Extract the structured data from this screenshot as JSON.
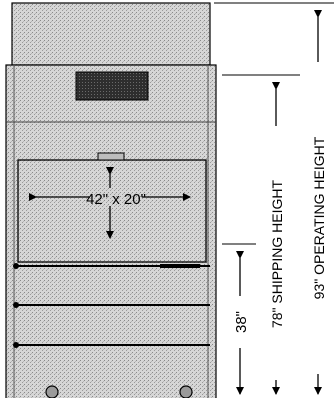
{
  "diagram": {
    "opening_dimensions": "42\" x 20\"",
    "base_height": "38\"",
    "shipping_height": "78\" SHIPPING HEIGHT",
    "operating_height": "93\" OPERATING HEIGHT"
  },
  "colors": {
    "stipple_light": "#dcdcdc",
    "stipple_dark": "#8a8a8a",
    "line": "#000000",
    "vent": "#3a3a3a"
  }
}
